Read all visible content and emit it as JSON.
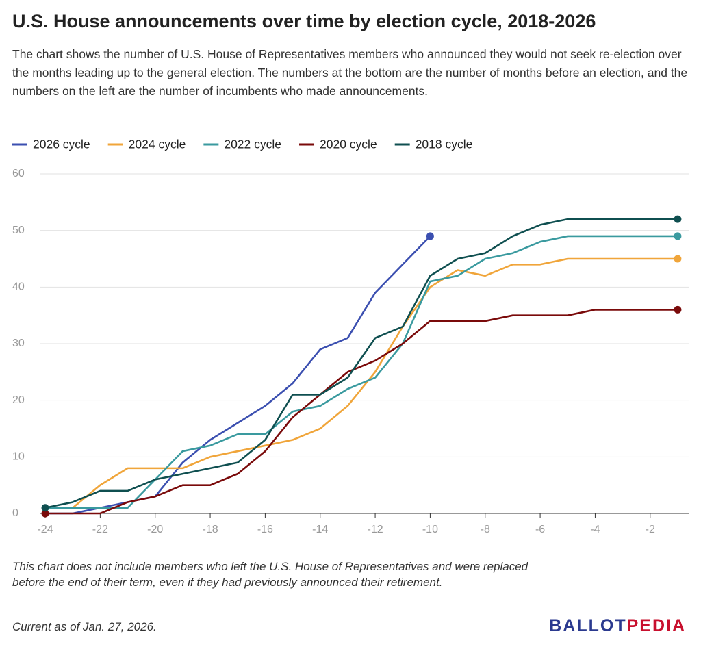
{
  "chart_data": {
    "type": "line",
    "title": "U.S. House announcements over time by election cycle, 2018-2026",
    "subtitle": "The chart shows the number of U.S. House of Representatives members who announced they would not seek re-election over the months leading up to the general election. The numbers at the bottom are the number of months before an election, and the numbers on the left are the number of incumbents who made announcements.",
    "x": [
      -24,
      -23,
      -22,
      -21,
      -20,
      -19,
      -18,
      -17,
      -16,
      -15,
      -14,
      -13,
      -12,
      -11,
      -10,
      -9,
      -8,
      -7,
      -6,
      -5,
      -4,
      -3,
      -2,
      -1
    ],
    "series": [
      {
        "name": "2026 cycle",
        "color": "#3b4fb0",
        "values": [
          0,
          0,
          1,
          2,
          3,
          9,
          13,
          16,
          19,
          23,
          29,
          31,
          39,
          44,
          49,
          null,
          null,
          null,
          null,
          null,
          null,
          null,
          null,
          null
        ]
      },
      {
        "name": "2024 cycle",
        "color": "#f0a53a",
        "values": [
          1,
          1,
          5,
          8,
          8,
          8,
          10,
          11,
          12,
          13,
          15,
          19,
          25,
          33,
          40,
          43,
          42,
          44,
          44,
          45,
          45,
          45,
          45,
          45
        ]
      },
      {
        "name": "2022 cycle",
        "color": "#3a9a9f",
        "values": [
          1,
          1,
          1,
          1,
          6,
          11,
          12,
          14,
          14,
          18,
          19,
          22,
          24,
          30,
          41,
          42,
          45,
          46,
          48,
          49,
          49,
          49,
          49,
          49
        ]
      },
      {
        "name": "2020 cycle",
        "color": "#7a0a0a",
        "values": [
          0,
          0,
          0,
          2,
          3,
          5,
          5,
          7,
          11,
          17,
          21,
          25,
          27,
          30,
          34,
          34,
          34,
          35,
          35,
          35,
          36,
          36,
          36,
          36
        ]
      },
      {
        "name": "2018 cycle",
        "color": "#0f4f50",
        "values": [
          1,
          2,
          4,
          4,
          6,
          7,
          8,
          9,
          13,
          21,
          21,
          24,
          31,
          33,
          42,
          45,
          46,
          49,
          51,
          52,
          52,
          52,
          52,
          52
        ]
      }
    ],
    "xlim": [
      -24.2,
      -0.6
    ],
    "xticks": [
      -24,
      -22,
      -20,
      -18,
      -16,
      -14,
      -12,
      -10,
      -8,
      -6,
      -4,
      -2
    ],
    "ylim": [
      0,
      60
    ],
    "yticks": [
      0,
      10,
      20,
      30,
      40,
      50,
      60
    ],
    "grid": true,
    "footnote": "This chart does not include members who left the U.S. House of Representatives and were replaced before the end of their term, even if they had previously announced their retirement.",
    "note": "Current as of Jan. 27, 2026.",
    "logo": [
      "BALLOT",
      "PEDIA"
    ]
  }
}
